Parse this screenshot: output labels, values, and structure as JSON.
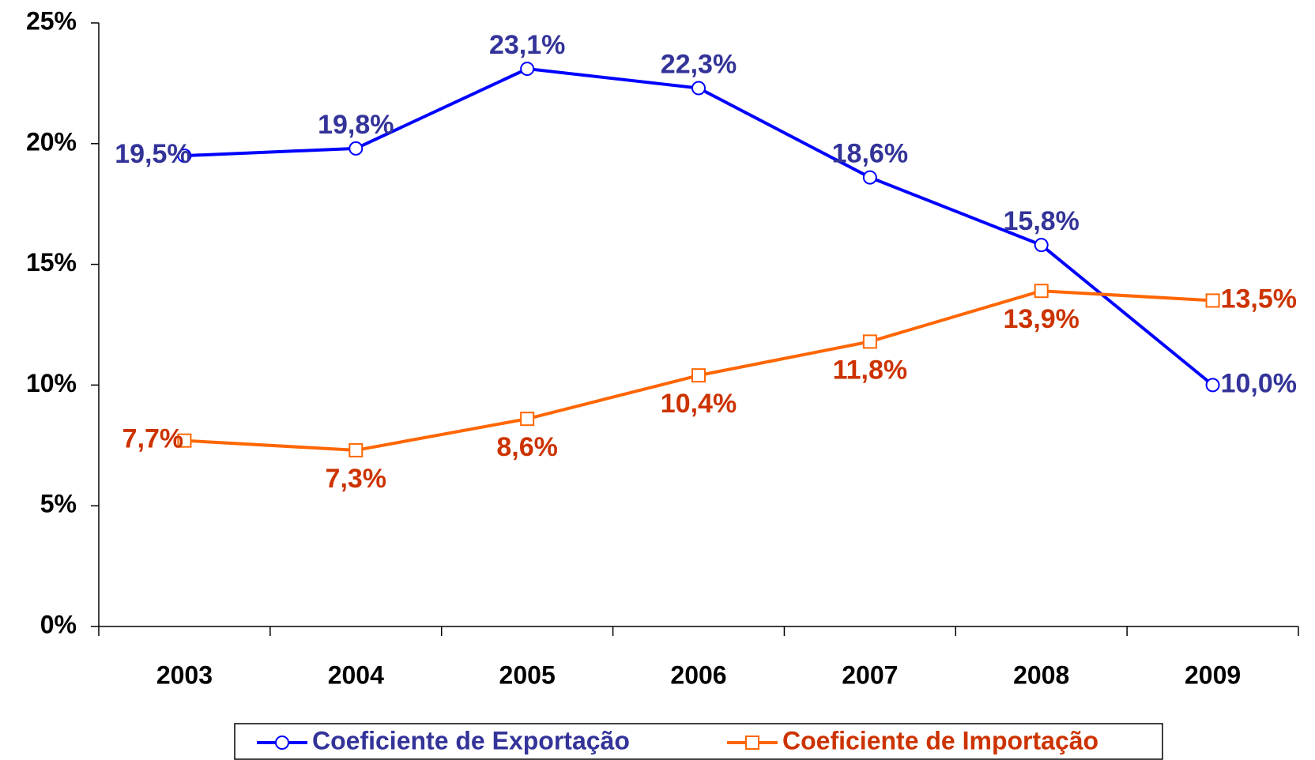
{
  "chart_data": {
    "type": "line",
    "categories": [
      "2003",
      "2004",
      "2005",
      "2006",
      "2007",
      "2008",
      "2009"
    ],
    "series": [
      {
        "name": "Coeficiente de Exportação",
        "color": "#0000ff",
        "label_color": "#333399",
        "marker": "circle",
        "values": [
          19.5,
          19.8,
          23.1,
          22.3,
          18.6,
          15.8,
          10.0
        ],
        "value_labels": [
          "19,5%",
          "19,8%",
          "23,1%",
          "22,3%",
          "18,6%",
          "15,8%",
          "10,0%"
        ]
      },
      {
        "name": "Coeficiente de Importação",
        "color": "#ff6600",
        "label_color": "#cc3300",
        "marker": "square",
        "values": [
          7.7,
          7.3,
          8.6,
          10.4,
          11.8,
          13.9,
          13.5
        ],
        "value_labels": [
          "7,7%",
          "7,3%",
          "8,6%",
          "10,4%",
          "11,8%",
          "13,9%",
          "13,5%"
        ]
      }
    ],
    "ylim": [
      0,
      25
    ],
    "yticks": [
      {
        "value": 0,
        "label": "0%"
      },
      {
        "value": 5,
        "label": "5%"
      },
      {
        "value": 10,
        "label": "10%"
      },
      {
        "value": 15,
        "label": "15%"
      },
      {
        "value": 20,
        "label": "20%"
      },
      {
        "value": 25,
        "label": "25%"
      }
    ],
    "grid": false,
    "legend": "bottom"
  }
}
